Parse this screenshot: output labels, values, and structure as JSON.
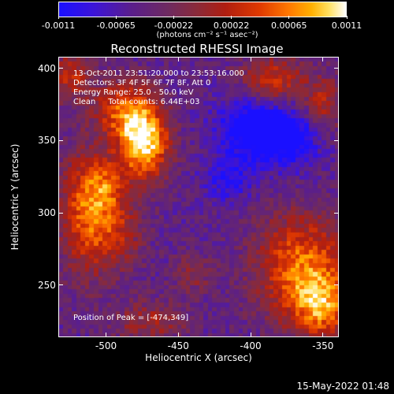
{
  "colorbar": {
    "tick_labels": [
      "-0.0011",
      "-0.00065",
      "-0.00022",
      "0.00022",
      "0.00065",
      "0.0011"
    ],
    "units": "(photons cm⁻² s⁻¹ asec⁻²)"
  },
  "annotations": {
    "line1": "13-Oct-2011 23:51:20.000 to 23:53:16.000",
    "line2": "Detectors: 3F 4F 5F 6F 7F 8F, Att 0",
    "line3": "Energy Range: 25.0 - 50.0 keV",
    "line4": "Clean     Total counts: 6.44E+03",
    "peak": "Position of Peak = [-474,349]"
  },
  "footer": {
    "timestamp": "15-May-2022 01:48"
  },
  "chart_data": {
    "type": "heatmap",
    "title": "Reconstructed RHESSI Image",
    "xlabel": "Heliocentric X (arcsec)",
    "ylabel": "Heliocentric Y (arcsec)",
    "xlim": [
      -533,
      -339
    ],
    "ylim": [
      214,
      408
    ],
    "x_ticks": [
      -500,
      -450,
      -400,
      -350
    ],
    "y_ticks": [
      250,
      300,
      350,
      400
    ],
    "x_tick_labels": [
      "-500",
      "-450",
      "-400",
      "-350"
    ],
    "y_tick_labels": [
      "250",
      "300",
      "350",
      "400"
    ],
    "colorbar_range": [
      -0.0011,
      0.0011
    ],
    "peak_position": [
      -474,
      349
    ],
    "sources": [
      {
        "x": -474,
        "y": 349,
        "sx": 12,
        "sy": 18,
        "amp": 1.0
      },
      {
        "x": -490,
        "y": 372,
        "sx": 14,
        "sy": 14,
        "amp": 0.55
      },
      {
        "x": -515,
        "y": 300,
        "sx": 12,
        "sy": 30,
        "amp": 0.6
      },
      {
        "x": -500,
        "y": 318,
        "sx": 10,
        "sy": 14,
        "amp": 0.45
      },
      {
        "x": -492,
        "y": 285,
        "sx": 12,
        "sy": 18,
        "amp": 0.4
      },
      {
        "x": -525,
        "y": 395,
        "sx": 10,
        "sy": 12,
        "amp": 0.45
      },
      {
        "x": -365,
        "y": 262,
        "sx": 22,
        "sy": 26,
        "amp": 0.7
      },
      {
        "x": -350,
        "y": 235,
        "sx": 14,
        "sy": 16,
        "amp": 0.55
      },
      {
        "x": -385,
        "y": 392,
        "sx": 16,
        "sy": 12,
        "amp": 0.5
      },
      {
        "x": -350,
        "y": 375,
        "sx": 10,
        "sy": 14,
        "amp": 0.4
      },
      {
        "x": -470,
        "y": 225,
        "sx": 18,
        "sy": 10,
        "amp": 0.35
      },
      {
        "x": -440,
        "y": 258,
        "sx": 10,
        "sy": 10,
        "amp": 0.25
      }
    ],
    "negative_regions": [
      {
        "x": -400,
        "y": 358,
        "sx": 16,
        "sy": 16,
        "amp": -0.55
      },
      {
        "x": -372,
        "y": 352,
        "sx": 14,
        "sy": 14,
        "amp": -0.5
      },
      {
        "x": -415,
        "y": 322,
        "sx": 12,
        "sy": 10,
        "amp": -0.3
      }
    ]
  }
}
